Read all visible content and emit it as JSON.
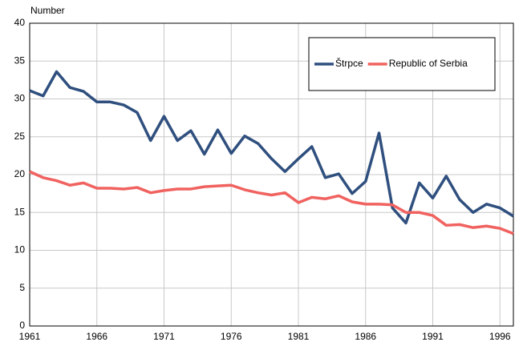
{
  "chart_data": {
    "type": "line",
    "y_label": "Number",
    "x": [
      1961,
      1962,
      1963,
      1964,
      1965,
      1966,
      1967,
      1968,
      1969,
      1970,
      1971,
      1972,
      1973,
      1974,
      1975,
      1976,
      1977,
      1978,
      1979,
      1980,
      1981,
      1982,
      1983,
      1984,
      1985,
      1986,
      1987,
      1988,
      1989,
      1990,
      1991,
      1992,
      1993,
      1994,
      1995,
      1996,
      1997
    ],
    "series": [
      {
        "name": "Štrpce",
        "color": "#2f4f7e",
        "values": [
          31.1,
          30.4,
          33.6,
          31.5,
          31.0,
          29.6,
          29.6,
          29.2,
          28.2,
          24.5,
          27.7,
          24.5,
          25.8,
          22.7,
          25.9,
          22.8,
          25.1,
          24.1,
          22.1,
          20.4,
          22.1,
          23.7,
          19.6,
          20.1,
          17.5,
          19.1,
          25.5,
          15.6,
          13.6,
          18.9,
          16.9,
          19.8,
          16.7,
          15.0,
          16.1,
          15.6,
          14.5
        ]
      },
      {
        "name": "Republic of Serbia",
        "color": "#f0625f",
        "values": [
          20.4,
          19.6,
          19.2,
          18.6,
          18.9,
          18.2,
          18.2,
          18.1,
          18.3,
          17.6,
          17.9,
          18.1,
          18.1,
          18.4,
          18.5,
          18.6,
          18.0,
          17.6,
          17.3,
          17.6,
          16.3,
          17.0,
          16.8,
          17.2,
          16.4,
          16.1,
          16.1,
          16.0,
          15.0,
          15.0,
          14.6,
          13.3,
          13.4,
          13.0,
          13.2,
          12.9,
          12.2
        ]
      }
    ],
    "xlim": [
      1961,
      1997
    ],
    "xticks": [
      1961,
      1966,
      1971,
      1976,
      1981,
      1986,
      1991,
      1996
    ],
    "ylim": [
      0,
      40
    ],
    "yticks": [
      0,
      5,
      10,
      15,
      20,
      25,
      30,
      35,
      40
    ],
    "grid": true
  }
}
